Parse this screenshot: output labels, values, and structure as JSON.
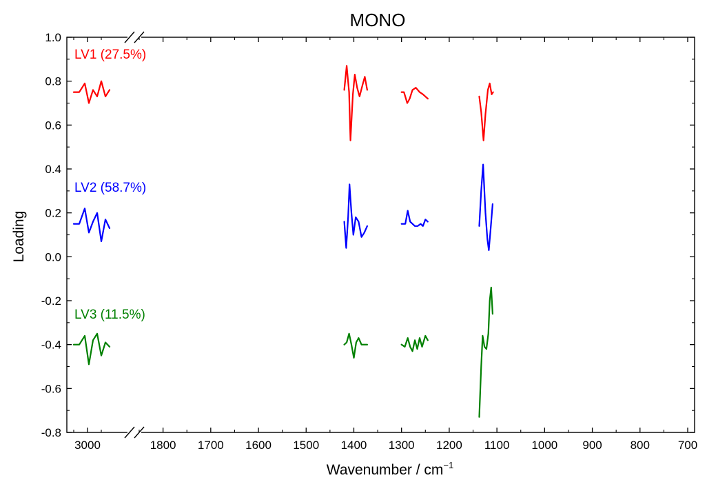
{
  "chart_data": {
    "type": "line",
    "title": "MONO",
    "xlabel": "Wavenumber / cm",
    "xlabel_superscript": "−1",
    "ylabel": "Loading",
    "ylim": [
      -0.8,
      1.0
    ],
    "yticks": [
      "-0.8",
      "-0.6",
      "-0.4",
      "-0.2",
      "0.0",
      "0.2",
      "0.4",
      "0.6",
      "0.8",
      "1.0"
    ],
    "x_axis_broken": true,
    "x_axis_reversed": true,
    "xticks_left_segment": [
      "3000"
    ],
    "xticks_right_segment": [
      "1800",
      "1700",
      "1600",
      "1500",
      "1400",
      "1300",
      "1200",
      "1100",
      "1000",
      "900",
      "800",
      "700"
    ],
    "grid": false,
    "series": [
      {
        "name": "LV1 (27.5%)",
        "color": "#ff0000",
        "segments": [
          [
            [
              3050,
              0.75
            ],
            [
              3030,
              0.75
            ],
            [
              3010,
              0.79
            ],
            [
              2995,
              0.7
            ],
            [
              2980,
              0.76
            ],
            [
              2965,
              0.73
            ],
            [
              2950,
              0.8
            ],
            [
              2935,
              0.73
            ],
            [
              2920,
              0.76
            ]
          ],
          [
            [
              1420,
              0.76
            ],
            [
              1415,
              0.87
            ],
            [
              1410,
              0.75
            ],
            [
              1407,
              0.53
            ],
            [
              1402,
              0.74
            ],
            [
              1398,
              0.83
            ],
            [
              1393,
              0.77
            ],
            [
              1388,
              0.73
            ],
            [
              1382,
              0.78
            ],
            [
              1377,
              0.82
            ],
            [
              1372,
              0.76
            ]
          ],
          [
            [
              1300,
              0.75
            ],
            [
              1295,
              0.75
            ],
            [
              1288,
              0.7
            ],
            [
              1283,
              0.72
            ],
            [
              1277,
              0.76
            ],
            [
              1270,
              0.77
            ],
            [
              1262,
              0.75
            ],
            [
              1255,
              0.74
            ],
            [
              1245,
              0.72
            ]
          ],
          [
            [
              1137,
              0.73
            ],
            [
              1133,
              0.66
            ],
            [
              1128,
              0.53
            ],
            [
              1124,
              0.65
            ],
            [
              1119,
              0.76
            ],
            [
              1115,
              0.79
            ],
            [
              1111,
              0.74
            ],
            [
              1108,
              0.75
            ]
          ]
        ]
      },
      {
        "name": "LV2 (58.7%)",
        "color": "#0000ff",
        "segments": [
          [
            [
              3050,
              0.15
            ],
            [
              3030,
              0.15
            ],
            [
              3010,
              0.22
            ],
            [
              2995,
              0.11
            ],
            [
              2980,
              0.16
            ],
            [
              2965,
              0.2
            ],
            [
              2950,
              0.07
            ],
            [
              2935,
              0.17
            ],
            [
              2920,
              0.13
            ]
          ],
          [
            [
              1420,
              0.16
            ],
            [
              1416,
              0.04
            ],
            [
              1412,
              0.18
            ],
            [
              1409,
              0.33
            ],
            [
              1405,
              0.2
            ],
            [
              1401,
              0.1
            ],
            [
              1396,
              0.18
            ],
            [
              1390,
              0.16
            ],
            [
              1384,
              0.09
            ],
            [
              1378,
              0.11
            ],
            [
              1372,
              0.14
            ]
          ],
          [
            [
              1300,
              0.15
            ],
            [
              1292,
              0.15
            ],
            [
              1287,
              0.21
            ],
            [
              1282,
              0.16
            ],
            [
              1277,
              0.15
            ],
            [
              1272,
              0.14
            ],
            [
              1266,
              0.14
            ],
            [
              1260,
              0.15
            ],
            [
              1255,
              0.14
            ],
            [
              1250,
              0.17
            ],
            [
              1245,
              0.16
            ]
          ],
          [
            [
              1137,
              0.14
            ],
            [
              1133,
              0.3
            ],
            [
              1129,
              0.42
            ],
            [
              1124,
              0.2
            ],
            [
              1120,
              0.08
            ],
            [
              1117,
              0.03
            ],
            [
              1113,
              0.13
            ],
            [
              1109,
              0.24
            ]
          ]
        ]
      },
      {
        "name": "LV3 (11.5%)",
        "color": "#008000",
        "segments": [
          [
            [
              3050,
              -0.4
            ],
            [
              3030,
              -0.4
            ],
            [
              3010,
              -0.36
            ],
            [
              2995,
              -0.49
            ],
            [
              2980,
              -0.38
            ],
            [
              2965,
              -0.35
            ],
            [
              2950,
              -0.45
            ],
            [
              2935,
              -0.39
            ],
            [
              2920,
              -0.41
            ]
          ],
          [
            [
              1420,
              -0.4
            ],
            [
              1415,
              -0.39
            ],
            [
              1410,
              -0.35
            ],
            [
              1405,
              -0.4
            ],
            [
              1400,
              -0.46
            ],
            [
              1395,
              -0.39
            ],
            [
              1390,
              -0.37
            ],
            [
              1384,
              -0.4
            ],
            [
              1378,
              -0.4
            ],
            [
              1372,
              -0.4
            ]
          ],
          [
            [
              1300,
              -0.4
            ],
            [
              1293,
              -0.41
            ],
            [
              1287,
              -0.37
            ],
            [
              1282,
              -0.41
            ],
            [
              1277,
              -0.43
            ],
            [
              1272,
              -0.38
            ],
            [
              1267,
              -0.42
            ],
            [
              1262,
              -0.37
            ],
            [
              1257,
              -0.41
            ],
            [
              1250,
              -0.36
            ],
            [
              1245,
              -0.38
            ]
          ],
          [
            [
              1137,
              -0.73
            ],
            [
              1133,
              -0.5
            ],
            [
              1130,
              -0.36
            ],
            [
              1126,
              -0.41
            ],
            [
              1122,
              -0.42
            ],
            [
              1118,
              -0.35
            ],
            [
              1115,
              -0.2
            ],
            [
              1112,
              -0.14
            ],
            [
              1109,
              -0.26
            ]
          ]
        ]
      }
    ]
  }
}
